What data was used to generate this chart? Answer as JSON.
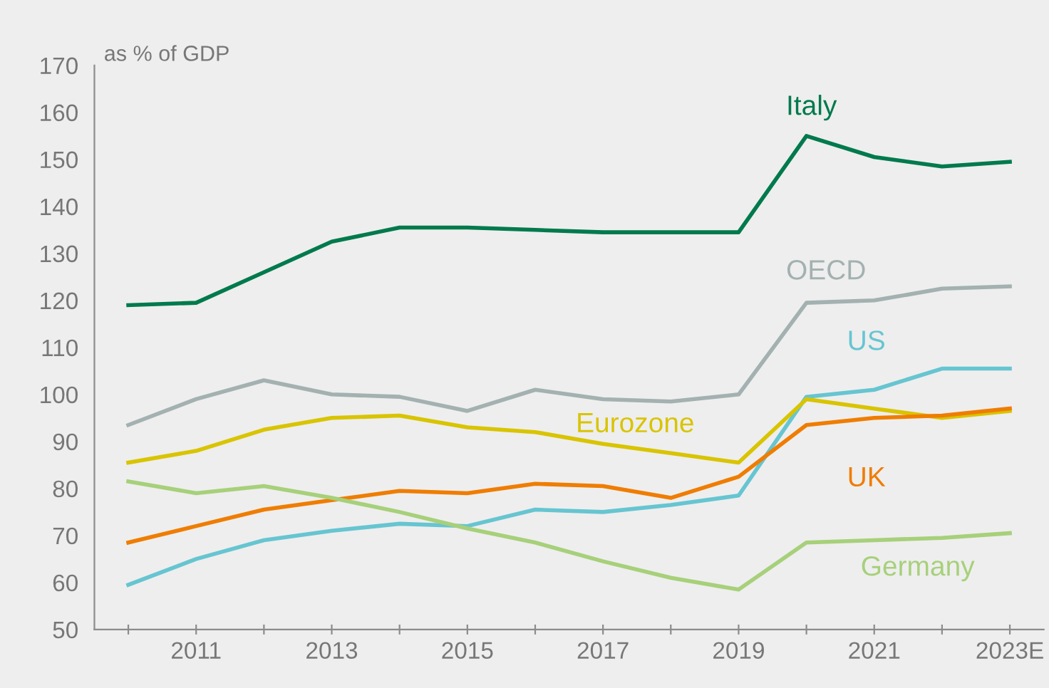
{
  "chart_data": {
    "type": "line",
    "ylabel": "as % of GDP",
    "x": [
      2010,
      2011,
      2012,
      2013,
      2014,
      2015,
      2016,
      2017,
      2018,
      2019,
      2020,
      2021,
      2022,
      2023
    ],
    "series": [
      {
        "name": "Italy",
        "color": "#007a4d",
        "values": [
          119,
          119.5,
          126,
          132.5,
          135.5,
          135.5,
          135,
          134.5,
          134.5,
          134.5,
          155,
          150.5,
          148.5,
          149.5
        ]
      },
      {
        "name": "OECD",
        "color": "#a3b1b0",
        "values": [
          93.5,
          99,
          103,
          100,
          99.5,
          96.5,
          101,
          99,
          98.5,
          100,
          119.5,
          120,
          122.5,
          123
        ]
      },
      {
        "name": "US",
        "color": "#66c5d1",
        "values": [
          59.5,
          65,
          69,
          71,
          72.5,
          72,
          75.5,
          75,
          76.5,
          78.5,
          99.5,
          101,
          105.5,
          105.5
        ]
      },
      {
        "name": "Eurozone",
        "color": "#d9c400",
        "values": [
          85.5,
          88,
          92.5,
          95,
          95.5,
          93,
          92,
          89.5,
          87.5,
          85.5,
          99,
          97,
          95,
          96.5
        ]
      },
      {
        "name": "UK",
        "color": "#ef7d00",
        "values": [
          68.5,
          72,
          75.5,
          77.5,
          79.5,
          79,
          81,
          80.5,
          78,
          82.5,
          93.5,
          95,
          95.5,
          97
        ]
      },
      {
        "name": "Germany",
        "color": "#a7d07a",
        "values": [
          81.5,
          79,
          80.5,
          78,
          75,
          71.5,
          68.5,
          64.5,
          61,
          58.5,
          68.5,
          69,
          69.5,
          70.5
        ]
      }
    ],
    "xlim": [
      2009.5,
      2023.5
    ],
    "ylim": [
      50,
      170
    ],
    "xticks": [
      {
        "value": 2010,
        "label": null
      },
      2011,
      {
        "value": 2012,
        "label": null
      },
      2013,
      {
        "value": 2014,
        "label": null
      },
      2015,
      {
        "value": 2016,
        "label": null
      },
      2017,
      {
        "value": 2018,
        "label": null
      },
      2019,
      {
        "value": 2020,
        "label": null
      },
      2021,
      {
        "value": 2022,
        "label": null
      },
      {
        "value": 2023,
        "label": "2023E"
      }
    ],
    "yticks": [
      50,
      60,
      70,
      80,
      90,
      100,
      110,
      120,
      130,
      140,
      150,
      160,
      170
    ],
    "grid": false,
    "legend": false,
    "marker": "none",
    "line_style": "solid"
  }
}
